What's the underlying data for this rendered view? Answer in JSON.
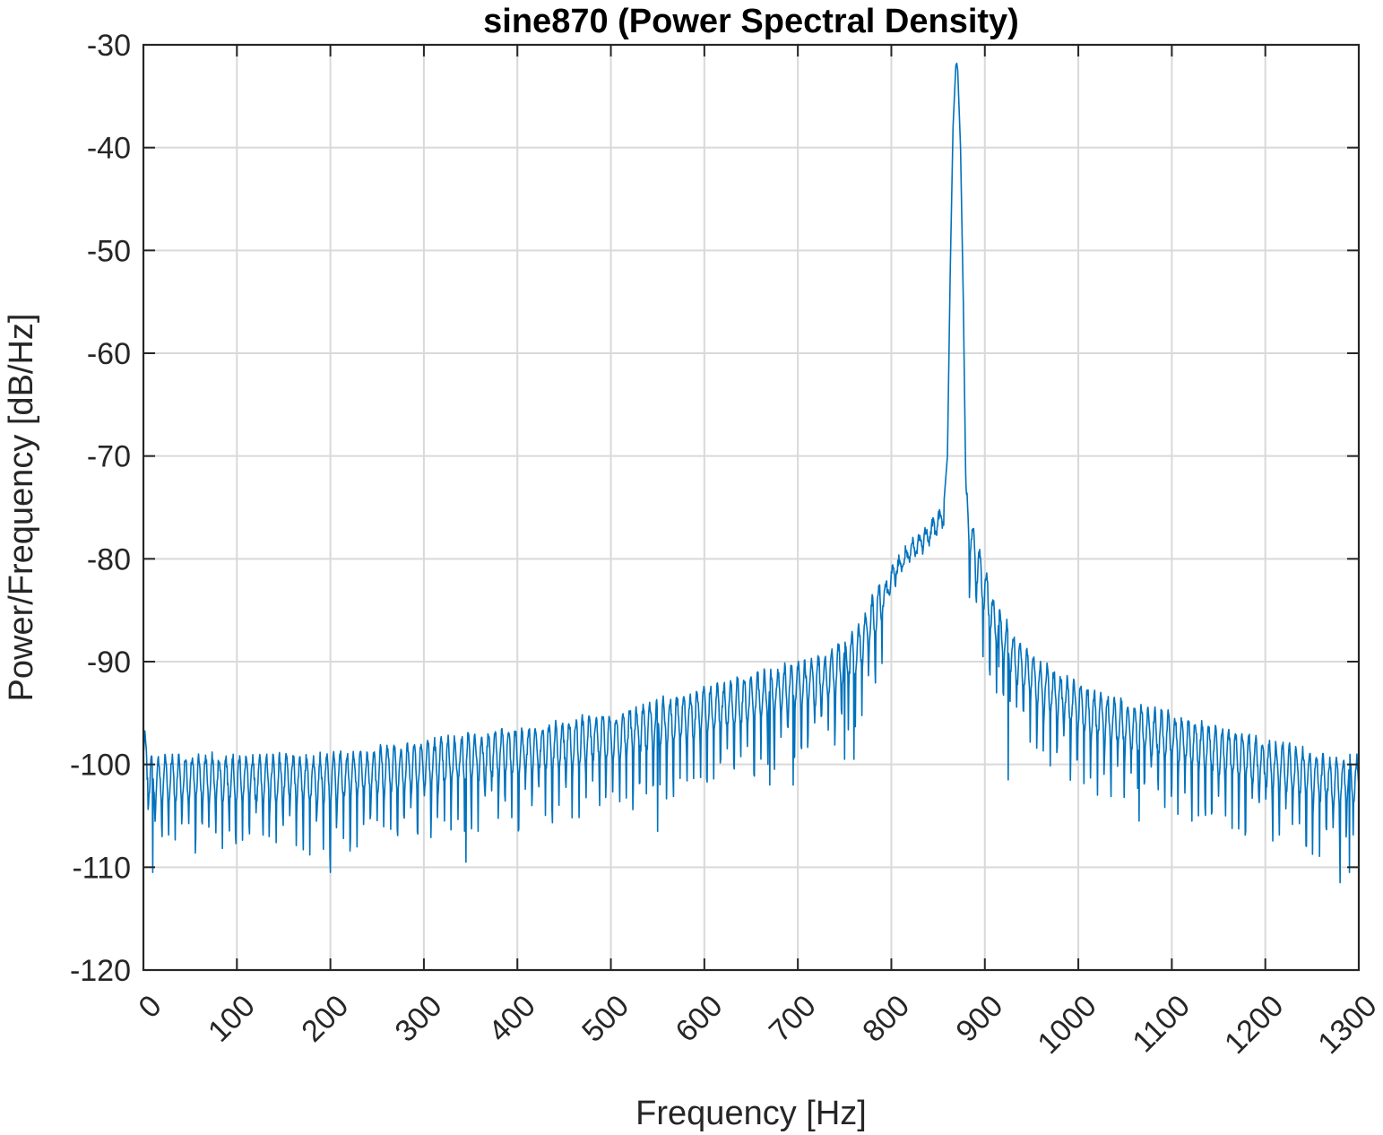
{
  "chart_data": {
    "type": "line",
    "title": "sine870 (Power Spectral Density)",
    "xlabel": "Frequency [Hz]",
    "ylabel": "Power/Frequency [dB/Hz]",
    "xlim": [
      0,
      1300
    ],
    "ylim": [
      -120,
      -30
    ],
    "xticks": [
      0,
      100,
      200,
      300,
      400,
      500,
      600,
      700,
      800,
      900,
      1000,
      1100,
      1200,
      1300
    ],
    "yticks": [
      -120,
      -110,
      -100,
      -90,
      -80,
      -70,
      -60,
      -50,
      -40,
      -30
    ],
    "xtick_labels": [
      "0",
      "100",
      "200",
      "300",
      "400",
      "500",
      "600",
      "700",
      "800",
      "900",
      "1000",
      "1100",
      "1200",
      "1300"
    ],
    "ytick_labels": [
      "-120",
      "-110",
      "-100",
      "-90",
      "-80",
      "-70",
      "-60",
      "-50",
      "-40",
      "-30"
    ],
    "grid": true,
    "line_color": "#0072BD",
    "series": [
      {
        "x": [
          0,
          10,
          20,
          40,
          60,
          80,
          100,
          120,
          140,
          160,
          180,
          200,
          220,
          240,
          260,
          280,
          300,
          320,
          340,
          360,
          380,
          400,
          420,
          440,
          460,
          480,
          500,
          520,
          540,
          560,
          580,
          600,
          620,
          640,
          660,
          680,
          700,
          720,
          740,
          760,
          770,
          780,
          790,
          800,
          810,
          820,
          830,
          840,
          850,
          855,
          860,
          863,
          866,
          869,
          870,
          871,
          874,
          877,
          880,
          885,
          890,
          900,
          910,
          920,
          930,
          940,
          950,
          960,
          980,
          1000,
          1020,
          1040,
          1060,
          1080,
          1100,
          1120,
          1140,
          1160,
          1180,
          1200,
          1220,
          1240,
          1260,
          1280,
          1300
        ],
        "y": [
          -99,
          -102,
          -101.5,
          -101.5,
          -101.5,
          -101.5,
          -101.5,
          -101.5,
          -101.5,
          -101.5,
          -101.5,
          -101.5,
          -101,
          -101,
          -100.5,
          -100.5,
          -100,
          -100,
          -99.5,
          -99.5,
          -99,
          -99,
          -98.5,
          -98.5,
          -98,
          -97.5,
          -97.5,
          -97,
          -96.5,
          -96,
          -95.5,
          -95,
          -94.5,
          -94,
          -93.5,
          -93,
          -92.5,
          -92,
          -91,
          -89.5,
          -88,
          -86,
          -84,
          -82,
          -80.5,
          -79.5,
          -78.5,
          -77.5,
          -76.5,
          -76,
          -70,
          -52,
          -38,
          -32,
          -31.8,
          -32.5,
          -40,
          -55,
          -75,
          -78,
          -80,
          -83,
          -86,
          -88,
          -89.5,
          -90.5,
          -91.5,
          -92.5,
          -93.5,
          -94.5,
          -95.5,
          -96,
          -96.5,
          -97,
          -97.5,
          -98,
          -98.5,
          -99,
          -99.5,
          -100,
          -100.5,
          -101,
          -101.5,
          -102,
          -101.5
        ]
      }
    ],
    "deep_dips": [
      {
        "x": 10,
        "y": -110.5
      },
      {
        "x": 200,
        "y": -110.5
      },
      {
        "x": 345,
        "y": -109.5
      },
      {
        "x": 550,
        "y": -106.5
      },
      {
        "x": 670,
        "y": -102
      },
      {
        "x": 695,
        "y": -102
      },
      {
        "x": 750,
        "y": -99.5
      },
      {
        "x": 760,
        "y": -99.5
      },
      {
        "x": 915,
        "y": -90.5
      },
      {
        "x": 925,
        "y": -101.5
      },
      {
        "x": 1065,
        "y": -105.5
      },
      {
        "x": 1280,
        "y": -111.5
      },
      {
        "x": 1290,
        "y": -110.5
      }
    ]
  }
}
